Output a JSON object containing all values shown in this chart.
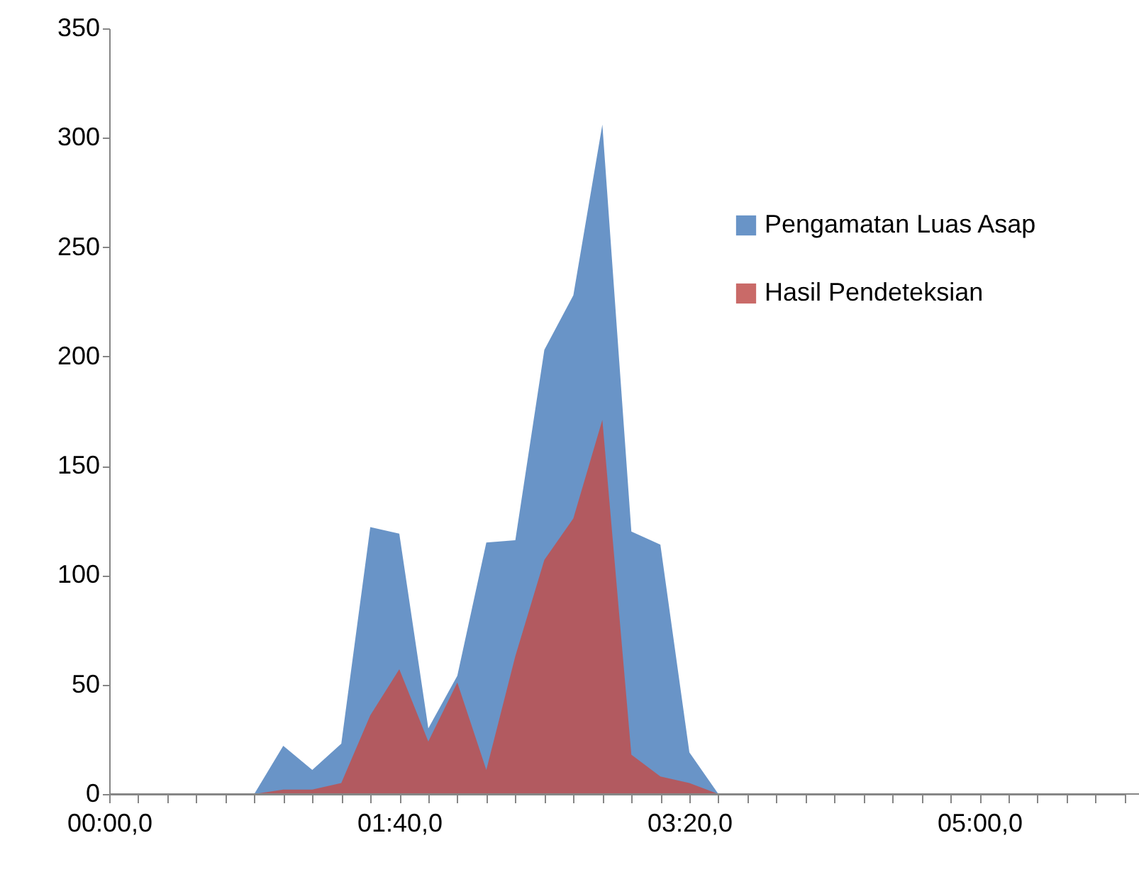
{
  "chart_data": {
    "type": "area",
    "categories": [
      "00:00,0",
      null,
      null,
      null,
      null,
      null,
      null,
      null,
      null,
      null,
      "01:40,0",
      null,
      null,
      null,
      null,
      null,
      null,
      null,
      null,
      null,
      "03:20,0",
      null,
      null,
      null,
      null,
      null,
      null,
      null,
      null,
      null,
      "05:00,0",
      null,
      null,
      null,
      null,
      null
    ],
    "series": [
      {
        "name": "Pengamatan Luas Asap",
        "color": "#4f81bd",
        "values": [
          null,
          null,
          null,
          null,
          null,
          0,
          22,
          11,
          23,
          122,
          119,
          30,
          54,
          115,
          116,
          203,
          228,
          306,
          120,
          114,
          19,
          0,
          null,
          null,
          null,
          null,
          null,
          null,
          null,
          null,
          null,
          null,
          null,
          null,
          null,
          null
        ]
      },
      {
        "name": "Hasil Pendeteksian",
        "color": "#c0504d",
        "values": [
          null,
          null,
          null,
          null,
          null,
          0,
          2,
          2,
          5,
          36,
          57,
          24,
          51,
          11,
          63,
          107,
          126,
          171,
          18,
          8,
          5,
          0,
          null,
          null,
          null,
          null,
          null,
          null,
          null,
          null,
          null,
          null,
          null,
          null,
          null,
          null
        ]
      }
    ],
    "ylim": [
      0,
      350
    ],
    "yticks": [
      0,
      50,
      100,
      150,
      200,
      250,
      300,
      350
    ],
    "grid": false,
    "legend": "right"
  }
}
